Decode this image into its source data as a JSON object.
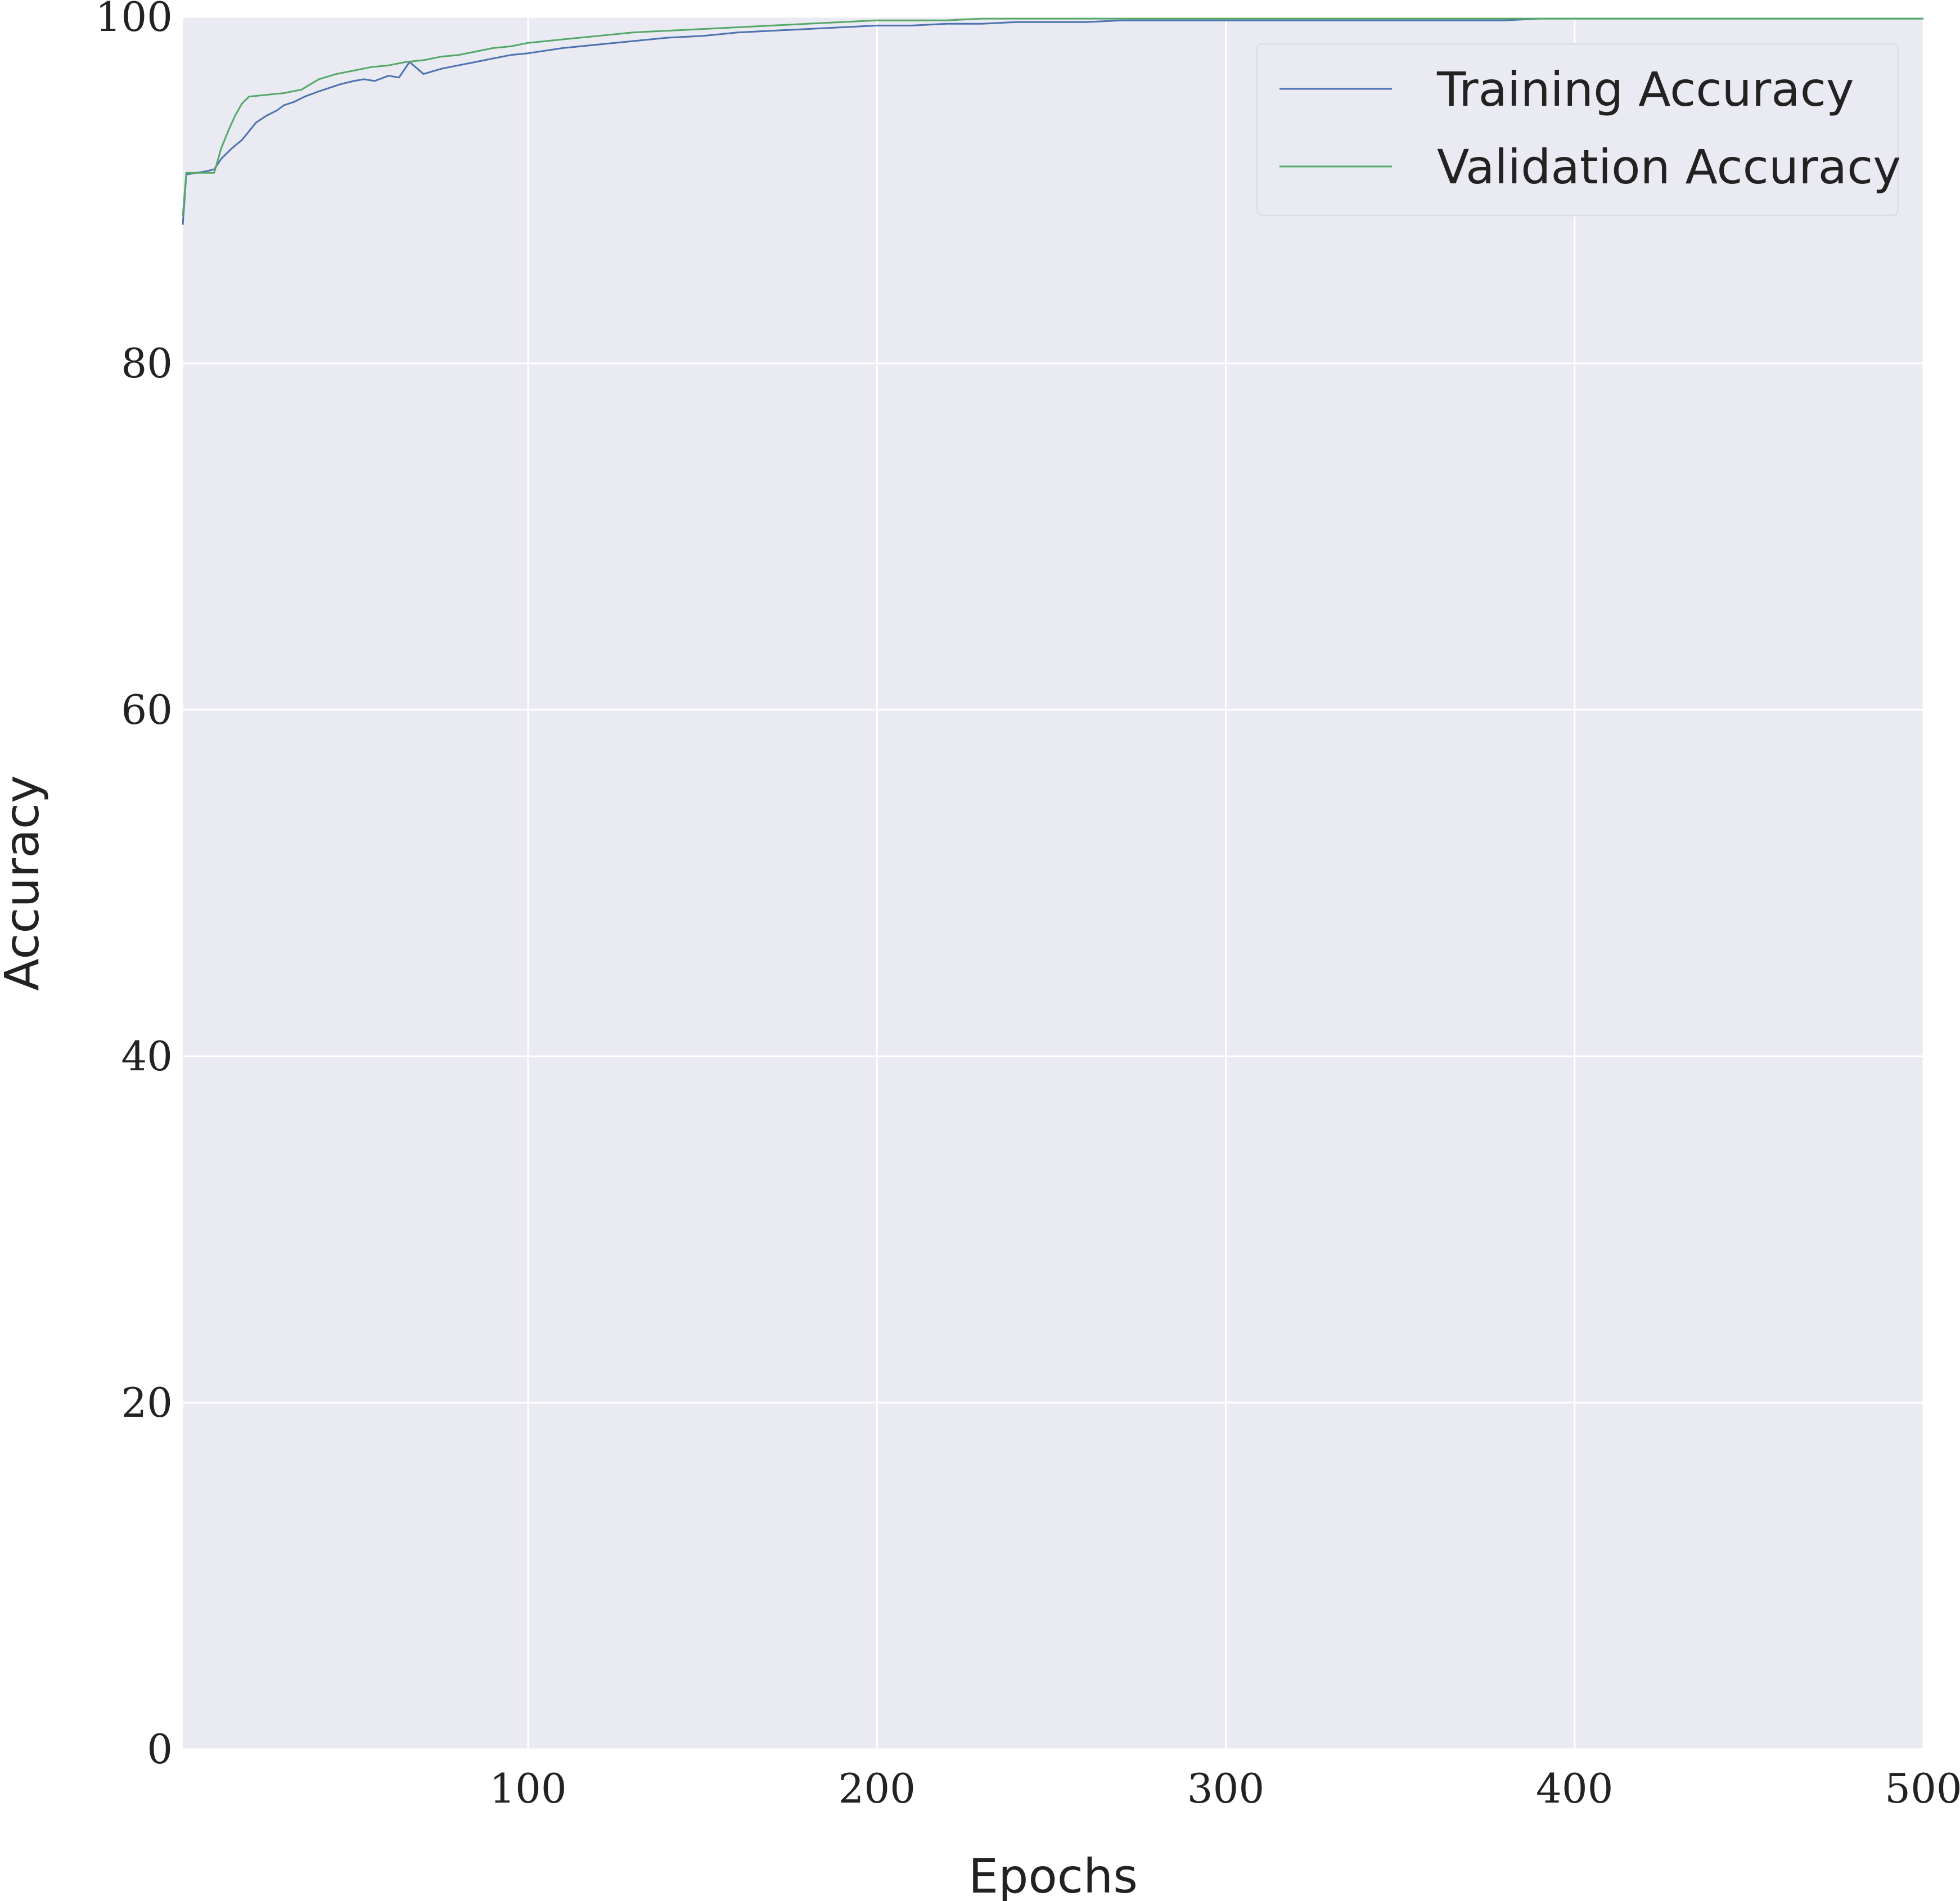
{
  "chart_data": {
    "type": "line",
    "title": "",
    "xlabel": "Epochs",
    "ylabel": "Accuracy",
    "xlim": [
      1,
      500
    ],
    "ylim": [
      0,
      100
    ],
    "xticks": [
      100,
      200,
      300,
      400,
      500
    ],
    "yticks": [
      0,
      20,
      40,
      60,
      80,
      100
    ],
    "grid": true,
    "legend_position": "top-right",
    "background_color": "#EAEAF2",
    "grid_color": "#FFFFFF",
    "series": [
      {
        "name": "Training Accuracy",
        "color": "#4C72B0",
        "x": [
          1,
          2,
          5,
          8,
          10,
          12,
          15,
          18,
          20,
          22,
          25,
          28,
          30,
          33,
          36,
          40,
          43,
          46,
          50,
          53,
          56,
          60,
          63,
          66,
          70,
          75,
          80,
          85,
          90,
          95,
          100,
          110,
          120,
          130,
          140,
          150,
          160,
          170,
          180,
          190,
          200,
          210,
          220,
          230,
          240,
          250,
          260,
          270,
          280,
          290,
          300,
          310,
          320,
          330,
          340,
          350,
          360,
          370,
          380,
          390,
          400,
          410,
          420,
          430,
          440,
          450,
          460,
          470,
          480,
          490,
          500
        ],
        "y": [
          88.0,
          90.9,
          91.0,
          91.1,
          91.2,
          91.8,
          92.4,
          92.9,
          93.4,
          93.9,
          94.3,
          94.6,
          94.9,
          95.1,
          95.4,
          95.7,
          95.9,
          96.1,
          96.3,
          96.4,
          96.3,
          96.6,
          96.5,
          97.4,
          96.7,
          97.0,
          97.2,
          97.4,
          97.6,
          97.8,
          97.9,
          98.2,
          98.4,
          98.6,
          98.8,
          98.9,
          99.1,
          99.2,
          99.3,
          99.4,
          99.5,
          99.5,
          99.6,
          99.6,
          99.7,
          99.7,
          99.7,
          99.8,
          99.8,
          99.8,
          99.8,
          99.8,
          99.8,
          99.8,
          99.8,
          99.8,
          99.8,
          99.8,
          99.8,
          99.9,
          99.9,
          99.9,
          99.9,
          99.9,
          99.9,
          99.9,
          99.9,
          99.9,
          99.9,
          99.9,
          99.9
        ]
      },
      {
        "name": "Validation Accuracy",
        "color": "#55A868",
        "x": [
          1,
          2,
          5,
          8,
          9,
          10,
          12,
          14,
          16,
          18,
          20,
          25,
          30,
          35,
          40,
          45,
          50,
          55,
          60,
          65,
          70,
          75,
          80,
          85,
          90,
          95,
          100,
          110,
          120,
          130,
          140,
          150,
          160,
          170,
          180,
          190,
          200,
          210,
          220,
          230,
          240,
          250,
          260,
          270,
          280,
          290,
          300,
          350,
          400,
          450,
          500
        ],
        "y": [
          88.5,
          91.0,
          91.0,
          91.0,
          91.0,
          91.0,
          92.4,
          93.4,
          94.3,
          95.0,
          95.4,
          95.5,
          95.6,
          95.8,
          96.4,
          96.7,
          96.9,
          97.1,
          97.2,
          97.4,
          97.5,
          97.7,
          97.8,
          98.0,
          98.2,
          98.3,
          98.5,
          98.7,
          98.9,
          99.1,
          99.2,
          99.3,
          99.4,
          99.5,
          99.6,
          99.7,
          99.8,
          99.8,
          99.8,
          99.9,
          99.9,
          99.9,
          99.9,
          99.9,
          99.9,
          99.9,
          99.9,
          99.9,
          99.9,
          99.9,
          99.9
        ]
      }
    ]
  }
}
